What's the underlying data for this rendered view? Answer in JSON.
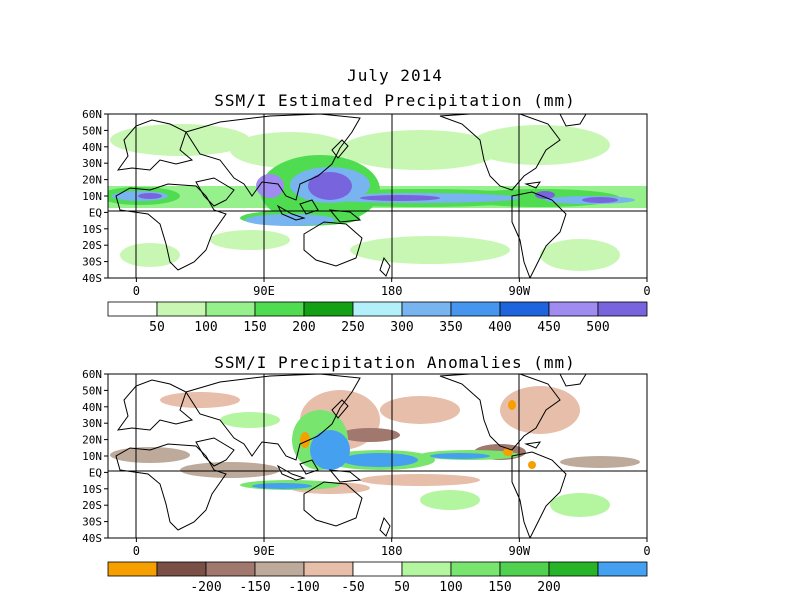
{
  "figure": {
    "month_title": "July 2014",
    "top_title": "SSM/I Estimated Precipitation (mm)",
    "bottom_title": "SSM/I Precipitation Anomalies (mm)"
  },
  "map_axes": {
    "lat_labels": [
      "60N",
      "50N",
      "40N",
      "30N",
      "20N",
      "10N",
      "EQ",
      "10S",
      "20S",
      "30S",
      "40S"
    ],
    "lon_labels": [
      {
        "label": "0",
        "lon": 0
      },
      {
        "label": "90E",
        "lon": 90
      },
      {
        "label": "180",
        "lon": 180
      },
      {
        "label": "90W",
        "lon": 270
      },
      {
        "label": "0",
        "lon": 360
      }
    ],
    "lon_range": [
      -20,
      360
    ],
    "lat_range": [
      -40,
      60
    ],
    "reference_lines": [
      "EQ",
      "0",
      "90E",
      "180",
      "90W"
    ]
  },
  "top_colorbar": {
    "colors": [
      "#ffffff",
      "#c8f7b4",
      "#96f08c",
      "#50dc50",
      "#14a014",
      "#b4f0fa",
      "#78b4f0",
      "#4696f0",
      "#1e64dc",
      "#a08cf0",
      "#7864dc"
    ],
    "labels": [
      "50",
      "100",
      "150",
      "200",
      "250",
      "300",
      "350",
      "400",
      "450",
      "500"
    ]
  },
  "bottom_colorbar": {
    "colors": [
      "#f5a000",
      "#7a5046",
      "#a0786e",
      "#beaa9a",
      "#e6beaa",
      "#ffffff",
      "#b4f5a0",
      "#78e66e",
      "#50d250",
      "#28b428",
      "#46a0f0"
    ],
    "labels": [
      "-200",
      "-150",
      "-100",
      "-50",
      "50",
      "100",
      "150",
      "200"
    ]
  },
  "legend_colors": {
    "land_outline": "#000000",
    "top_map_wet": "#50dc50",
    "top_map_very_wet": "#7864dc",
    "anomaly_dry": "#beaa9a",
    "anomaly_wet": "#46a0f0",
    "anomaly_extreme_dry": "#f5a000"
  }
}
